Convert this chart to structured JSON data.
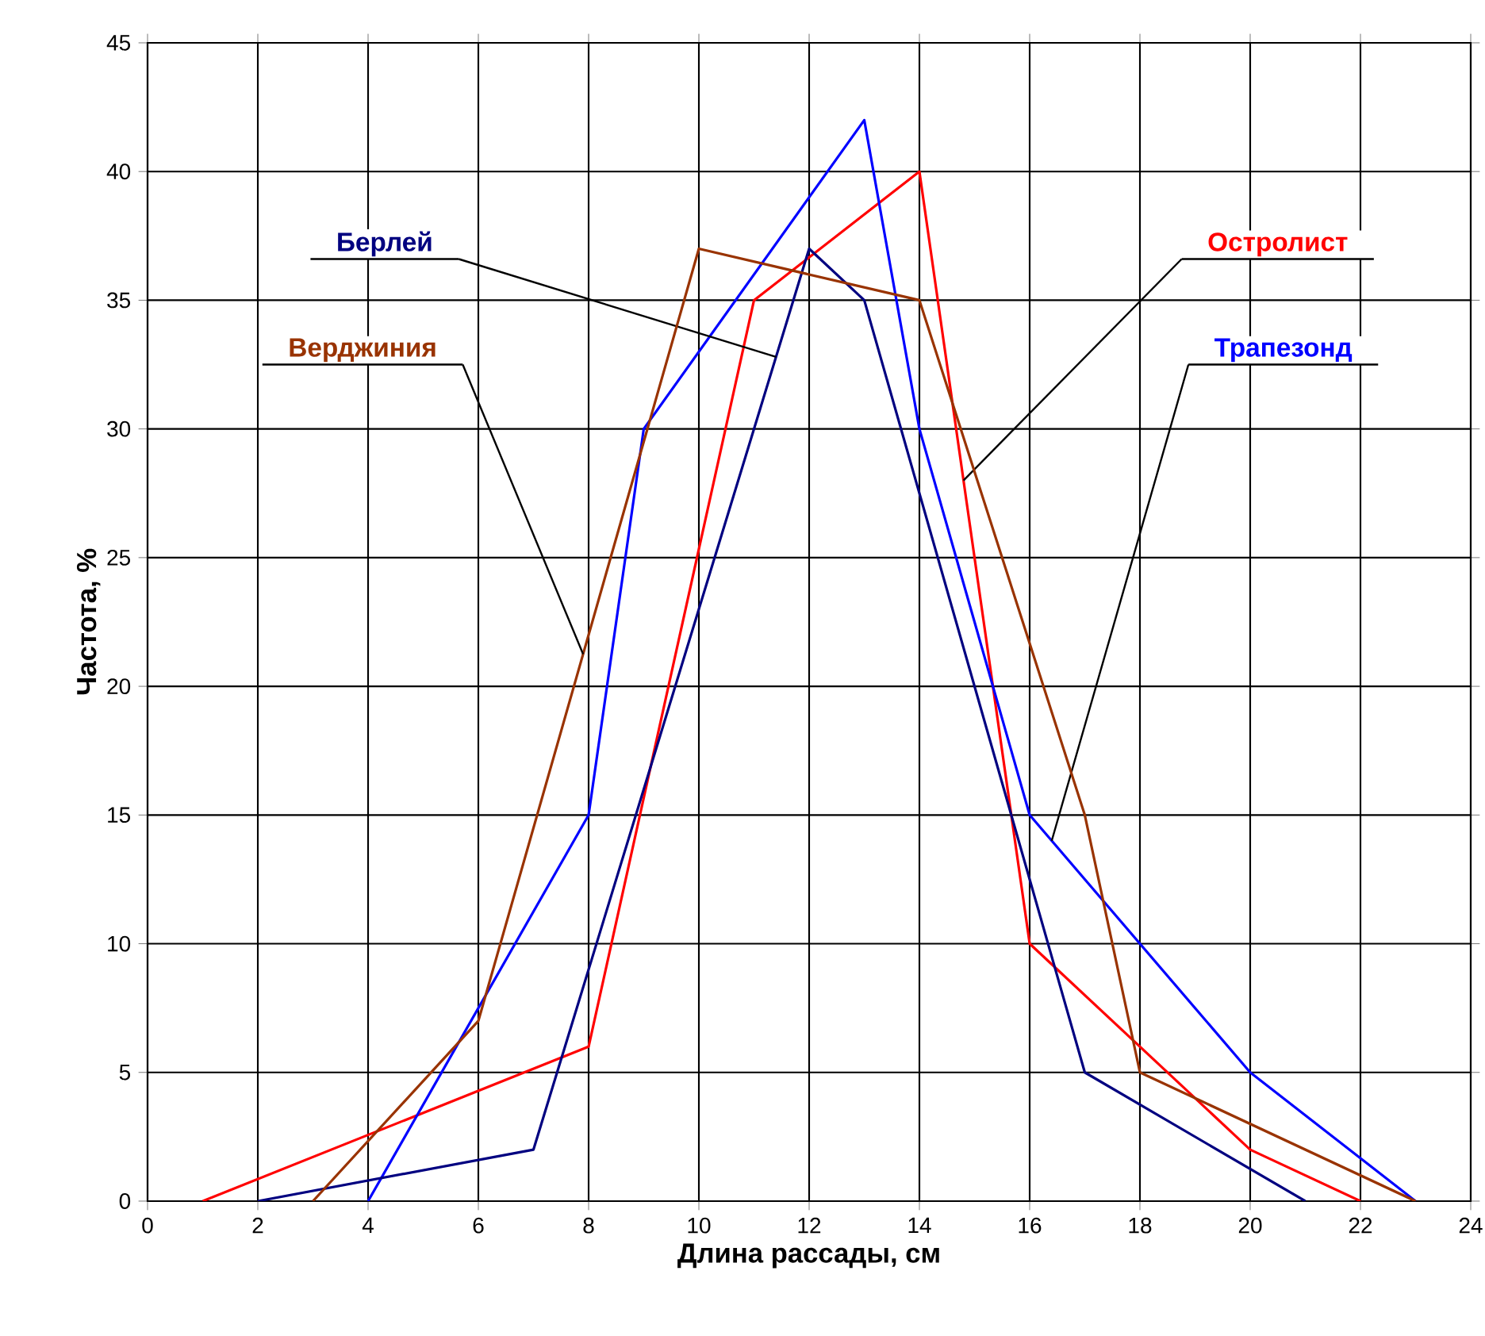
{
  "chart_data": {
    "type": "line",
    "xlabel": "Длина рассады, см",
    "ylabel": "Частота, %",
    "xlim": [
      0,
      24
    ],
    "ylim": [
      0,
      45
    ],
    "xticks": [
      0,
      2,
      4,
      6,
      8,
      10,
      12,
      14,
      16,
      18,
      20,
      22,
      24
    ],
    "yticks": [
      0,
      5,
      10,
      15,
      20,
      25,
      30,
      35,
      40,
      45
    ],
    "grid": true,
    "legend": false,
    "marker": "none",
    "line_style": "solid",
    "series": [
      {
        "name": "Остролист",
        "color": "#ff0000",
        "x": [
          1,
          8,
          11,
          14,
          16,
          20,
          22
        ],
        "values": [
          0,
          6,
          35,
          40,
          10,
          2,
          0
        ]
      },
      {
        "name": "Трапезонд",
        "color": "#0000ff",
        "x": [
          4,
          8,
          9,
          13,
          14,
          16,
          20,
          23
        ],
        "values": [
          0,
          15,
          30,
          42,
          30,
          15,
          5,
          0
        ]
      },
      {
        "name": "Берлей",
        "color": "#000080",
        "x": [
          2,
          7,
          12,
          13,
          17,
          21
        ],
        "values": [
          0,
          2,
          37,
          35,
          5,
          0
        ]
      },
      {
        "name": "Верджиния",
        "color": "#993300",
        "x": [
          3,
          6,
          10,
          14,
          17,
          18,
          23
        ],
        "values": [
          0,
          7,
          37,
          35,
          15,
          5,
          0
        ]
      }
    ]
  }
}
